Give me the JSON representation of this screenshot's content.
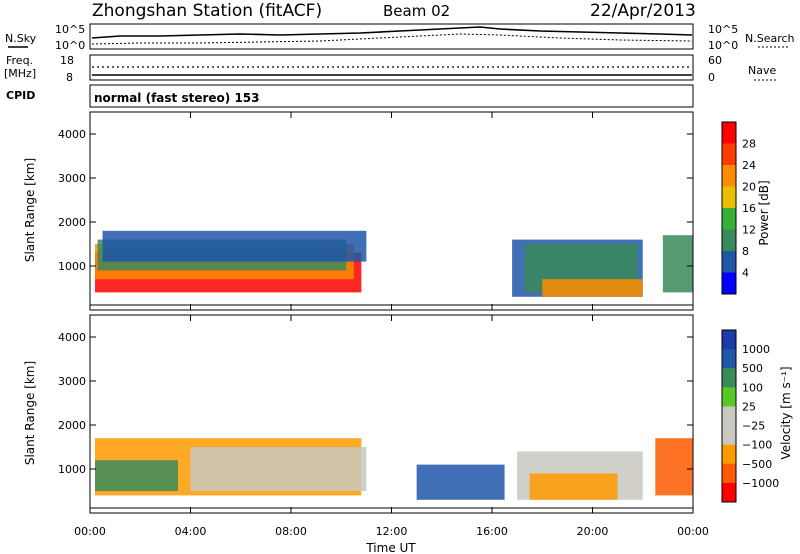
{
  "header": {
    "station": "Zhongshan Station (fitACF)",
    "beam": "Beam 02",
    "date": "22/Apr/2013"
  },
  "noise_panel": {
    "left_label": "N.Sky",
    "right_label": "N.Search",
    "left_ticks": [
      "10^5",
      "10^0"
    ],
    "right_ticks": [
      "10^5",
      "10^0"
    ]
  },
  "freq_panel": {
    "left_label_1": "Freq.",
    "left_label_2": "[MHz]",
    "right_label": "Nave",
    "left_ticks": [
      "18",
      "8"
    ],
    "right_ticks": [
      "60",
      "0"
    ]
  },
  "cpid": {
    "label": "CPID",
    "value": "normal (fast stereo) 153"
  },
  "chart_data": [
    {
      "type": "heatmap",
      "name": "power",
      "ylabel": "Slant Range [km]",
      "yticks": [
        "1000",
        "2000",
        "3000",
        "4000"
      ],
      "xticks": [
        "00:00",
        "04:00",
        "08:00",
        "12:00",
        "16:00",
        "20:00",
        "00:00"
      ],
      "colorbar_label": "Power [dB]",
      "colorbar_ticks": [
        "28",
        "24",
        "20",
        "16",
        "12",
        "8",
        "4"
      ],
      "colors": [
        "#0000ff",
        "#1f56a8",
        "#3a8a5a",
        "#38b038",
        "#e8c000",
        "#ff8c00",
        "#ff3c00",
        "#ff0000"
      ],
      "regions": [
        {
          "t0": 0.2,
          "t1": 10.8,
          "r0": 400,
          "r1": 1300,
          "color": "#ff0000"
        },
        {
          "t0": 0.2,
          "t1": 10.5,
          "r0": 700,
          "r1": 1500,
          "color": "#ff8c00"
        },
        {
          "t0": 0.3,
          "t1": 10.2,
          "r0": 900,
          "r1": 1600,
          "color": "#3a8a5a"
        },
        {
          "t0": 0.5,
          "t1": 11.0,
          "r0": 1100,
          "r1": 1800,
          "color": "#1f56a8"
        },
        {
          "t0": 16.8,
          "t1": 22.0,
          "r0": 300,
          "r1": 1600,
          "color": "#1f56a8"
        },
        {
          "t0": 17.3,
          "t1": 21.8,
          "r0": 400,
          "r1": 1500,
          "color": "#3a8a5a"
        },
        {
          "t0": 18.0,
          "t1": 22.0,
          "r0": 300,
          "r1": 700,
          "color": "#ff8c00"
        },
        {
          "t0": 22.8,
          "t1": 24.0,
          "r0": 400,
          "r1": 1700,
          "color": "#3a8a5a"
        }
      ]
    },
    {
      "type": "heatmap",
      "name": "velocity",
      "ylabel": "Slant Range [km]",
      "yticks": [
        "1000",
        "2000",
        "3000",
        "4000"
      ],
      "xticks": [
        "00:00",
        "04:00",
        "08:00",
        "12:00",
        "16:00",
        "20:00",
        "00:00"
      ],
      "xlabel": "Time UT",
      "colorbar_label": "Velocity [m s⁻¹]",
      "colorbar_ticks": [
        "1000",
        "500",
        "100",
        "25",
        "−25",
        "−100",
        "−500",
        "−1000"
      ],
      "colors": [
        "#ff0000",
        "#ff5a00",
        "#ff9a00",
        "#c8c8c0",
        "#c8c8c0",
        "#58c828",
        "#3a8a5a",
        "#1f56a8",
        "#1c3aa8"
      ],
      "regions": [
        {
          "t0": 0.2,
          "t1": 10.8,
          "r0": 400,
          "r1": 1700,
          "color": "#ff9a00"
        },
        {
          "t0": 4.0,
          "t1": 11.0,
          "r0": 500,
          "r1": 1500,
          "color": "#c8c8c0"
        },
        {
          "t0": 0.2,
          "t1": 3.5,
          "r0": 500,
          "r1": 1200,
          "color": "#3a8a5a"
        },
        {
          "t0": 13.0,
          "t1": 16.5,
          "r0": 300,
          "r1": 1100,
          "color": "#1f56a8"
        },
        {
          "t0": 17.0,
          "t1": 22.0,
          "r0": 300,
          "r1": 1400,
          "color": "#c8c8c0"
        },
        {
          "t0": 17.5,
          "t1": 21.0,
          "r0": 300,
          "r1": 900,
          "color": "#ff9a00"
        },
        {
          "t0": 22.5,
          "t1": 24.0,
          "r0": 400,
          "r1": 1700,
          "color": "#ff5a00"
        }
      ]
    }
  ]
}
